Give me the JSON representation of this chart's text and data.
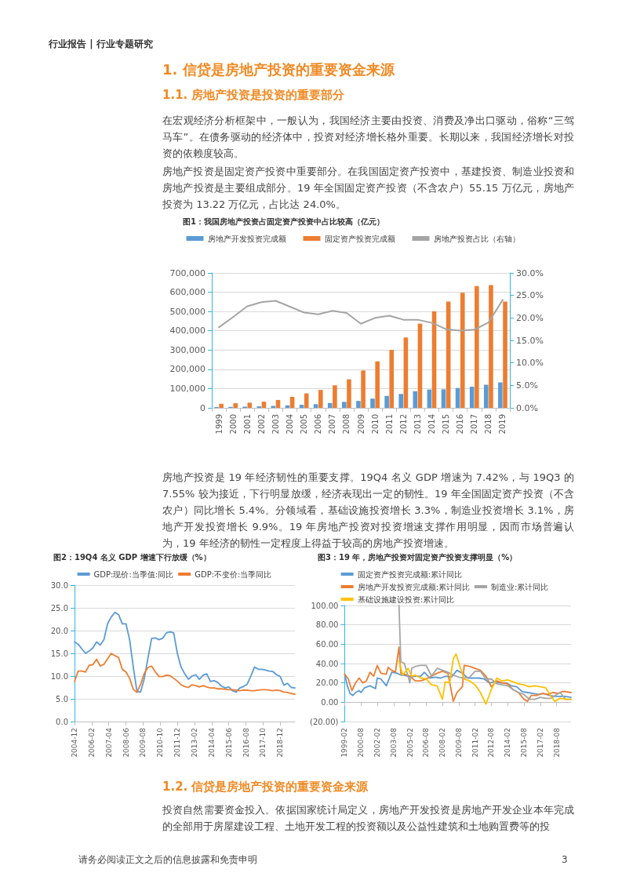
{
  "chart_data": [
    {
      "type": "bar",
      "title": "图1：我国房地产投资占固定资产投资中占比较高（亿元）",
      "annotations": [
        "行业报告 | 行业专题研究",
        "1. 信贷是房地产投资的重要资金来源",
        "1.1. 房地产投资是投资的重要部分",
        "在宏观经济分析框架中，一般认为，我国经济主要由投资、消费及净出口驱动，俗称“三驾马车”。在债务驱动的经济体中，投资对经济增长格外重要。长期以来，我国经济增长对投资的依赖度较高。",
        "房地产投资是固定资产投资中重要部分。在我国固定资产投资中，基建投资、制造业投资和房地产投资是主要组成部分。19 年全国固定资产投资（不含农户）55.15 万亿元，房地产投资为 13.22 万亿元，占比达 24.0%。"
      ],
      "categories": [
        "1999",
        "2000",
        "2001",
        "2002",
        "2003",
        "2004",
        "2005",
        "2006",
        "2007",
        "2008",
        "2009",
        "2010",
        "2011",
        "2012",
        "2013",
        "2014",
        "2015",
        "2016",
        "2017",
        "2018",
        "2019"
      ],
      "series": [
        {
          "name": "房地产开发投资完成额",
          "color": "#5b9bd5",
          "values": [
            4000,
            5000,
            6300,
            7800,
            10000,
            13000,
            16000,
            19000,
            25000,
            31000,
            36000,
            48000,
            62000,
            72000,
            86000,
            95000,
            96000,
            103000,
            110000,
            120000,
            132000
          ]
        },
        {
          "name": "固定资产投资完成额",
          "color": "#ed7d31",
          "values": [
            21000,
            24000,
            27000,
            32000,
            41000,
            57000,
            75000,
            93000,
            117000,
            148000,
            194000,
            241000,
            301000,
            365000,
            437000,
            501000,
            551000,
            597000,
            632000,
            637000,
            551000
          ]
        },
        {
          "name": "房地产投资占比（右轴）",
          "color": "#a5a5a5",
          "type": "line",
          "axis": "y2",
          "values": [
            17.9,
            20.2,
            22.6,
            23.5,
            23.8,
            22.5,
            21.2,
            20.8,
            21.6,
            21.1,
            18.7,
            20.0,
            20.5,
            19.6,
            19.6,
            18.9,
            17.5,
            17.2,
            17.4,
            19.0,
            24.0
          ]
        }
      ],
      "ylim": [
        0,
        700000
      ],
      "yticks": [
        0,
        {
          "value": 100000,
          "label": "100,000"
        },
        {
          "value": 200000,
          "label": "200,000"
        },
        {
          "value": 300000,
          "label": "300,000"
        },
        {
          "value": 400000,
          "label": "400,000"
        },
        {
          "value": 500000,
          "label": "500,000"
        },
        {
          "value": 600000,
          "label": "600,000"
        },
        {
          "value": 700000,
          "label": "700,000"
        }
      ],
      "y2lim": [
        0,
        30
      ],
      "y2ticks": [
        {
          "value": 0,
          "label": "0.0%"
        },
        {
          "value": 5,
          "label": "5.0%"
        },
        {
          "value": 10,
          "label": "10.0%"
        },
        {
          "value": 15,
          "label": "15.0%"
        },
        {
          "value": 20,
          "label": "20.0%"
        },
        {
          "value": 25,
          "label": "25.0%"
        },
        {
          "value": 30,
          "label": "30.0%"
        }
      ],
      "grid": "y",
      "legend": "top"
    },
    {
      "type": "line",
      "title": "图2：19Q4 名义 GDP 增速下行放缓（%）",
      "annotations": [
        "房地产投资是 19 年经济韧性的重要支撑。19Q4 名义 GDP 增速为 7.42%，与 19Q3 的 7.55% 较为接近，下行明显放缓，经济表现出一定的韧性。19 年全国固定资产投资（不含农户）同比增长 5.4%。分领域看，基础设施投资增长 3.3%，制造业投资增长 3.1%，房地产开发投资增长 9.9%。19 年房地产投资对投资增速支撑作用明显，因而市场普遍认为，19 年经济的韧性一定程度上得益于较高的房地产投资增速。"
      ],
      "x": [
        "2004-12",
        "2005-03",
        "2005-06",
        "2005-09",
        "2005-12",
        "2006-03",
        "2006-06",
        "2006-09",
        "2006-12",
        "2007-03",
        "2007-06",
        "2007-09",
        "2007-12",
        "2008-03",
        "2008-06",
        "2008-09",
        "2008-12",
        "2009-03",
        "2009-06",
        "2009-09",
        "2009-12",
        "2010-03",
        "2010-06",
        "2010-09",
        "2010-12",
        "2011-03",
        "2011-06",
        "2011-09",
        "2011-12",
        "2012-03",
        "2012-06",
        "2012-09",
        "2012-12",
        "2013-03",
        "2013-06",
        "2013-09",
        "2013-12",
        "2014-03",
        "2014-06",
        "2014-09",
        "2014-12",
        "2015-03",
        "2015-06",
        "2015-09",
        "2015-12",
        "2016-03",
        "2016-06",
        "2016-09",
        "2016-12",
        "2017-03",
        "2017-06",
        "2017-09",
        "2017-12",
        "2018-03",
        "2018-06",
        "2018-09",
        "2018-12",
        "2019-03",
        "2019-06",
        "2019-09",
        "2019-12"
      ],
      "series": [
        {
          "name": "GDP:现价:当季值:同比",
          "color": "#5b9bd5",
          "values": [
            17.5,
            17,
            16,
            15,
            15.5,
            16.2,
            17.5,
            16.8,
            18,
            21.5,
            23,
            24,
            23.5,
            21.5,
            21.5,
            18,
            12,
            6.6,
            6.5,
            9.5,
            14,
            18.3,
            18.4,
            18,
            18.3,
            19.5,
            19.7,
            19.5,
            15,
            12,
            10.5,
            9.3,
            10,
            10.3,
            9.3,
            10.2,
            10.5,
            8.8,
            9,
            8.6,
            7.8,
            7.4,
            7.6,
            6.8,
            6.5,
            7.4,
            7.7,
            8.2,
            10,
            12,
            11.5,
            11.5,
            11.3,
            11.1,
            11,
            10.3,
            9.9,
            8,
            8.4,
            7.5,
            7.4
          ]
        },
        {
          "name": "GDP:不变价:当季同比",
          "color": "#ed7d31",
          "values": [
            8.8,
            11.1,
            11.1,
            10.9,
            12.4,
            12.5,
            13.7,
            12.2,
            12.6,
            13.8,
            15,
            14.5,
            14.1,
            11.5,
            10.9,
            9.5,
            7.1,
            6.4,
            8.2,
            10.6,
            11.9,
            12.2,
            10.9,
            9.9,
            9.9,
            10.2,
            10.1,
            9.5,
            8.9,
            8.1,
            7.7,
            7.5,
            8.1,
            7.9,
            7.6,
            7.9,
            7.6,
            7.4,
            7.4,
            7.2,
            7.2,
            7.1,
            7.0,
            7.0,
            6.9,
            6.8,
            6.9,
            6.9,
            6.8,
            6.8,
            6.9,
            7.0,
            7.0,
            6.9,
            6.8,
            6.9,
            6.8,
            6.5,
            6.4,
            6.2,
            6.0
          ]
        }
      ],
      "xlim": [
        "2004-12",
        "2019-12"
      ],
      "xticks": [
        "2004-12",
        "2006-02",
        "2007-04",
        "2008-06",
        "2009-08",
        "2010-10",
        "2011-12",
        "2013-02",
        "2014-04",
        "2015-06",
        "2016-08",
        "2017-10",
        "2018-12"
      ],
      "ylim": [
        0,
        30
      ],
      "yticks": [
        {
          "value": 0,
          "label": "0.0"
        },
        {
          "value": 5,
          "label": "5.0"
        },
        {
          "value": 10,
          "label": "10.0"
        },
        {
          "value": 15,
          "label": "15.0"
        },
        {
          "value": 20,
          "label": "20.0"
        },
        {
          "value": 25,
          "label": "25.0"
        },
        {
          "value": 30,
          "label": "30.0"
        }
      ],
      "grid": "y",
      "legend": "top"
    },
    {
      "type": "line",
      "title": "图3：19 年，房地产投资对固定资产投资支撑明显（%）",
      "annotations": [
        "1.2. 信贷是房地产投资的重要资金来源",
        "投资自然需要资金投入。依据国家统计局定义，房地产开发投资是房地产开发企业本年完成的全部用于房屋建设工程、土地开发工程的投资额以及公益性建筑和土地购置费等的投",
        "请务必阅读正文之后的信息披露和免责申明",
        "3"
      ],
      "series": [
        {
          "name": "固定资产投资完成额:累计同比",
          "color": "#5b9bd5",
          "x": [
            "1999-02",
            "1999-05",
            "1999-08",
            "1999-11",
            "2000-02",
            "2000-06",
            "2000-08",
            "2000-12",
            "2001-06",
            "2001-12",
            "2002-02",
            "2002-06",
            "2002-12",
            "2003-06",
            "2003-12",
            "2004-02",
            "2004-05",
            "2004-08",
            "2005-02",
            "2005-08",
            "2006-02",
            "2006-06",
            "2006-12",
            "2007-06",
            "2007-12",
            "2008-06",
            "2008-12",
            "2009-06",
            "2009-12",
            "2010-06",
            "2010-12",
            "2011-06",
            "2011-12",
            "2012-06",
            "2012-12",
            "2013-06",
            "2013-12",
            "2014-06",
            "2014-12",
            "2015-06",
            "2015-12",
            "2016-06",
            "2016-12",
            "2017-06",
            "2017-12",
            "2018-06",
            "2018-12",
            "2019-06",
            "2019-12"
          ],
          "values": [
            29,
            17,
            9,
            7,
            10,
            12,
            10,
            15,
            17,
            14,
            25,
            24,
            17,
            31,
            30,
            29,
            28,
            28,
            26,
            27,
            27,
            31,
            25,
            26,
            25,
            27,
            26,
            33,
            30,
            25,
            25,
            25,
            24,
            20,
            21,
            20,
            20,
            17,
            16,
            11,
            10,
            9,
            8,
            9,
            7,
            6,
            6,
            6,
            5
          ]
        },
        {
          "name": "房地产开发投资完成额:累计同比",
          "color": "#ed7d31",
          "x": [
            "1999-02",
            "1999-06",
            "1999-10",
            "2000-02",
            "2000-06",
            "2000-10",
            "2001-02",
            "2001-06",
            "2001-10",
            "2002-02",
            "2002-06",
            "2002-12",
            "2003-02",
            "2003-06",
            "2003-10",
            "2004-02",
            "2004-04",
            "2004-08",
            "2005-02",
            "2005-08",
            "2006-02",
            "2006-08",
            "2007-02",
            "2007-08",
            "2008-02",
            "2008-08",
            "2009-02",
            "2009-06",
            "2009-12",
            "2010-02",
            "2010-08",
            "2011-02",
            "2011-08",
            "2012-02",
            "2012-08",
            "2013-02",
            "2013-08",
            "2014-02",
            "2014-08",
            "2015-02",
            "2015-08",
            "2015-12",
            "2016-04",
            "2016-10",
            "2017-04",
            "2017-10",
            "2018-04",
            "2018-10",
            "2019-02",
            "2019-06",
            "2019-12"
          ],
          "values": [
            29,
            24,
            12,
            20,
            25,
            20,
            22,
            31,
            27,
            38,
            30,
            29,
            36,
            33,
            31,
            57,
            30,
            29,
            27,
            22,
            22,
            24,
            27,
            30,
            32,
            30,
            1,
            10,
            16,
            38,
            37,
            35,
            33,
            27,
            16,
            22,
            20,
            19,
            13,
            10,
            3,
            1,
            7,
            7,
            9,
            8,
            10,
            9,
            11,
            11,
            10
          ]
        },
        {
          "name": "制造业:累计同比",
          "color": "#a5a5a5",
          "x": [
            "2004-02",
            "2004-04",
            "2004-08",
            "2005-02",
            "2005-04",
            "2005-08",
            "2006-02",
            "2006-08",
            "2007-02",
            "2007-08",
            "2008-02",
            "2008-08",
            "2009-02",
            "2009-08",
            "2010-02",
            "2010-08",
            "2011-02",
            "2011-08",
            "2012-02",
            "2012-08",
            "2013-02",
            "2013-08",
            "2014-02",
            "2014-08",
            "2015-02",
            "2015-08",
            "2016-02",
            "2016-08",
            "2017-02",
            "2017-08",
            "2018-02",
            "2018-08",
            "2018-12",
            "2019-06",
            "2019-12"
          ],
          "values": [
            100,
            42,
            40,
            20,
            35,
            37,
            38,
            38,
            27,
            35,
            33,
            31,
            28,
            26,
            25,
            26,
            32,
            32,
            24,
            24,
            19,
            18,
            17,
            13,
            10,
            8,
            3,
            3,
            5,
            4,
            4,
            8,
            10,
            3,
            3
          ]
        },
        {
          "name": "基础设施建设投资:累计同比",
          "color": "#ffc000",
          "x": [
            "2004-02",
            "2004-06",
            "2004-12",
            "2005-04",
            "2005-08",
            "2006-02",
            "2006-08",
            "2007-02",
            "2007-08",
            "2008-02",
            "2008-05",
            "2008-10",
            "2009-02",
            "2009-05",
            "2009-10",
            "2010-02",
            "2010-08",
            "2011-02",
            "2011-08",
            "2012-02",
            "2012-08",
            "2013-02",
            "2013-08",
            "2014-02",
            "2014-08",
            "2015-02",
            "2015-08",
            "2016-02",
            "2016-08",
            "2017-02",
            "2017-08",
            "2018-02",
            "2018-06",
            "2018-12",
            "2019-06",
            "2019-12"
          ],
          "values": [
            43,
            28,
            35,
            27,
            28,
            25,
            24,
            18,
            17,
            3,
            21,
            20,
            45,
            50,
            35,
            24,
            22,
            18,
            10,
            -2,
            13,
            25,
            22,
            23,
            21,
            19,
            18,
            16,
            17,
            16,
            15,
            6,
            1,
            4,
            3,
            3
          ]
        }
      ],
      "xlim": [
        "1999-02",
        "2019-12"
      ],
      "xticks": [
        "1999-02",
        "2000-08",
        "2002-02",
        "2003-08",
        "2005-02",
        "2006-08",
        "2008-02",
        "2009-08",
        "2011-02",
        "2012-08",
        "2014-02",
        "2015-08",
        "2017-02",
        "2018-08"
      ],
      "ylim": [
        -20,
        100
      ],
      "yticks": [
        {
          "value": -20,
          "label": "(20.00)"
        },
        {
          "value": 0,
          "label": "0.00"
        },
        {
          "value": 20,
          "label": "20.00"
        },
        {
          "value": 40,
          "label": "40.00"
        },
        {
          "value": 60,
          "label": "60.00"
        },
        {
          "value": 80,
          "label": "80.00"
        },
        {
          "value": 100,
          "label": "100.00"
        }
      ],
      "grid": "y",
      "legend": "top"
    }
  ]
}
